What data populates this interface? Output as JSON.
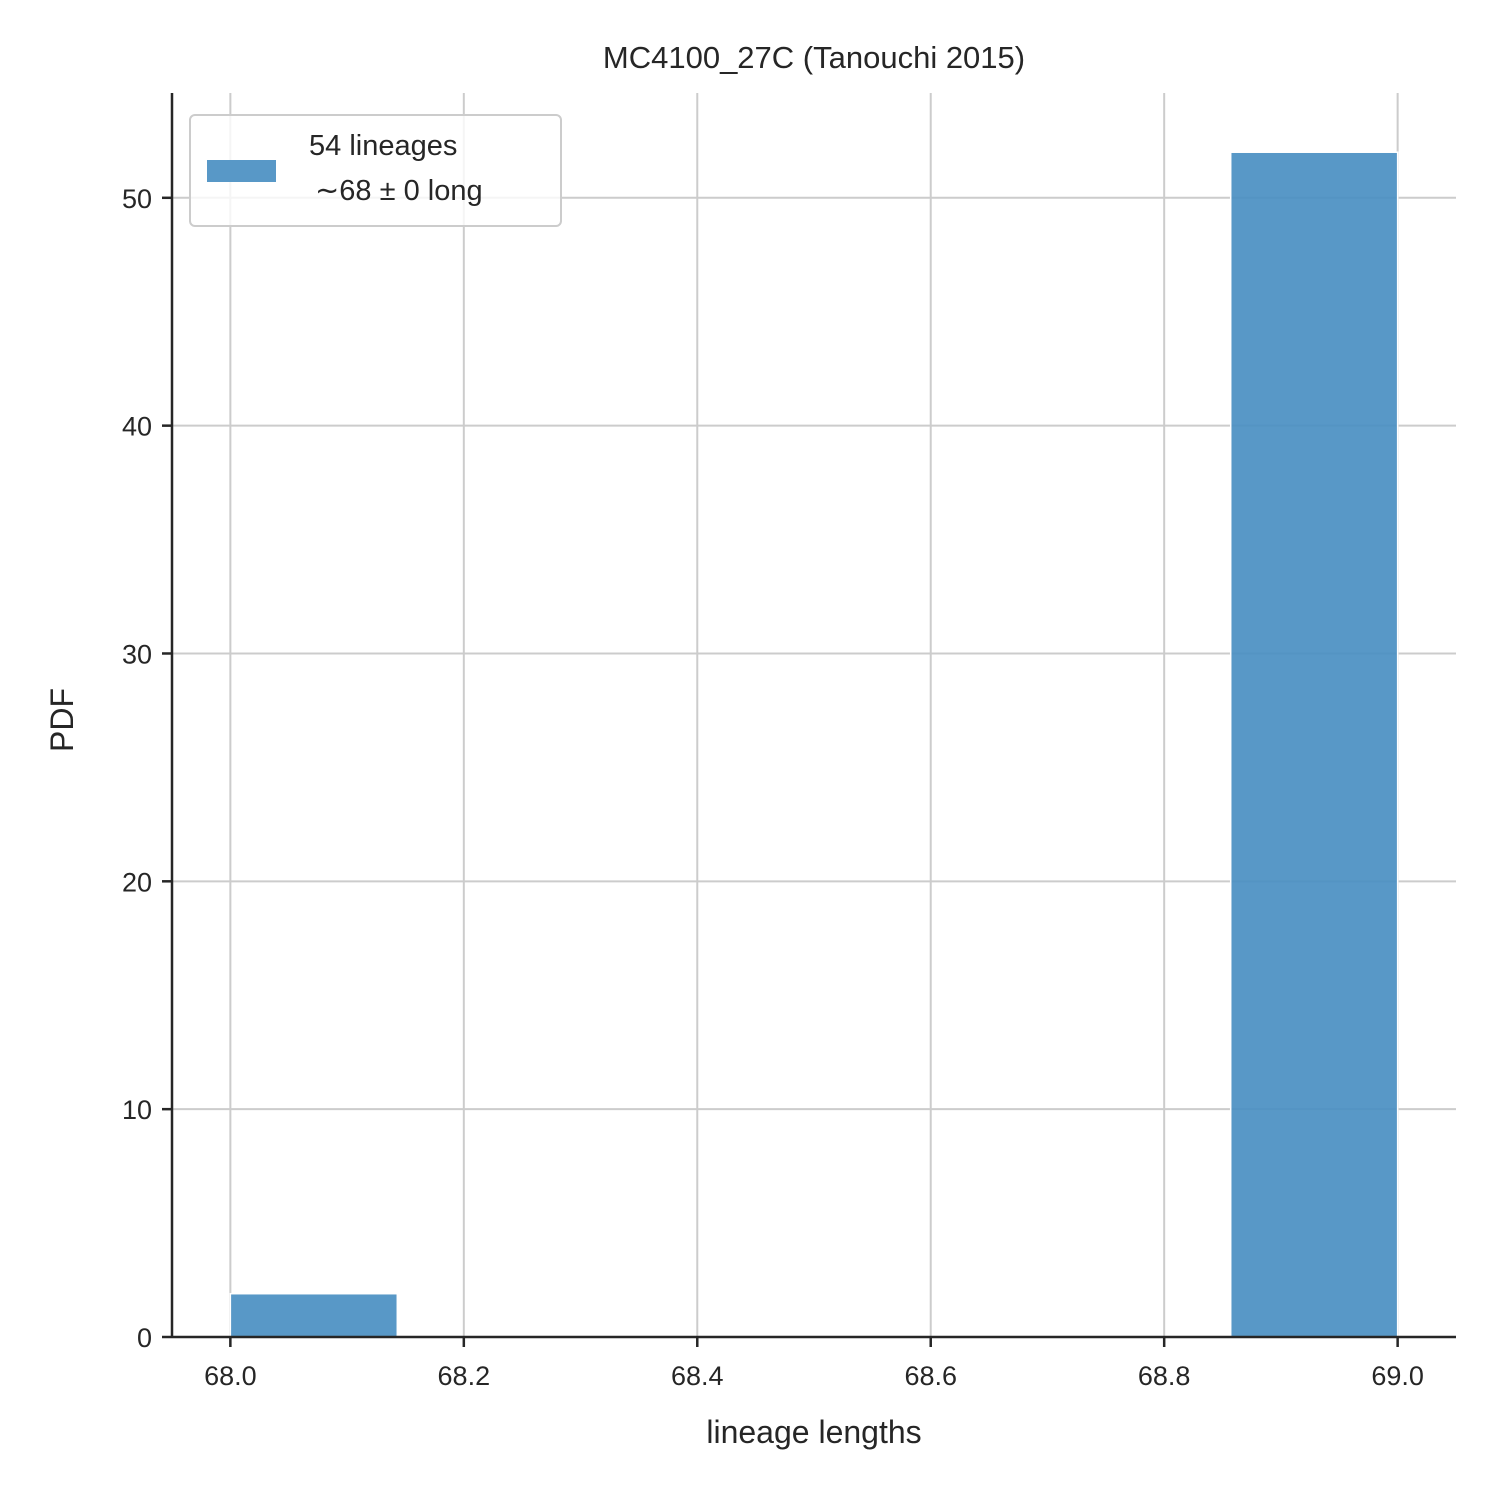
{
  "chart_data": {
    "type": "bar",
    "title": "MC4100_27C (Tanouchi 2015)",
    "xlabel": "lineage lengths",
    "ylabel": "PDF",
    "xlim": [
      67.95,
      69.05
    ],
    "ylim": [
      0,
      54.6
    ],
    "xticks": [
      68.0,
      68.2,
      68.4,
      68.6,
      68.8,
      69.0
    ],
    "xtick_labels": [
      "68.0",
      "68.2",
      "68.4",
      "68.6",
      "68.8",
      "69.0"
    ],
    "yticks": [
      0,
      10,
      20,
      30,
      40,
      50
    ],
    "ytick_labels": [
      "0",
      "10",
      "20",
      "30",
      "40",
      "50"
    ],
    "grid": true,
    "legend_position": "top-left",
    "bars": [
      {
        "x0": 68.0,
        "x1": 68.143,
        "value": 1.9
      },
      {
        "x0": 68.857,
        "x1": 69.0,
        "value": 52.0
      }
    ],
    "series": [
      {
        "label_line1": "54 lineages",
        "label_line2": "∼68 ± 0 long",
        "color": "#4a8fc2"
      }
    ]
  }
}
